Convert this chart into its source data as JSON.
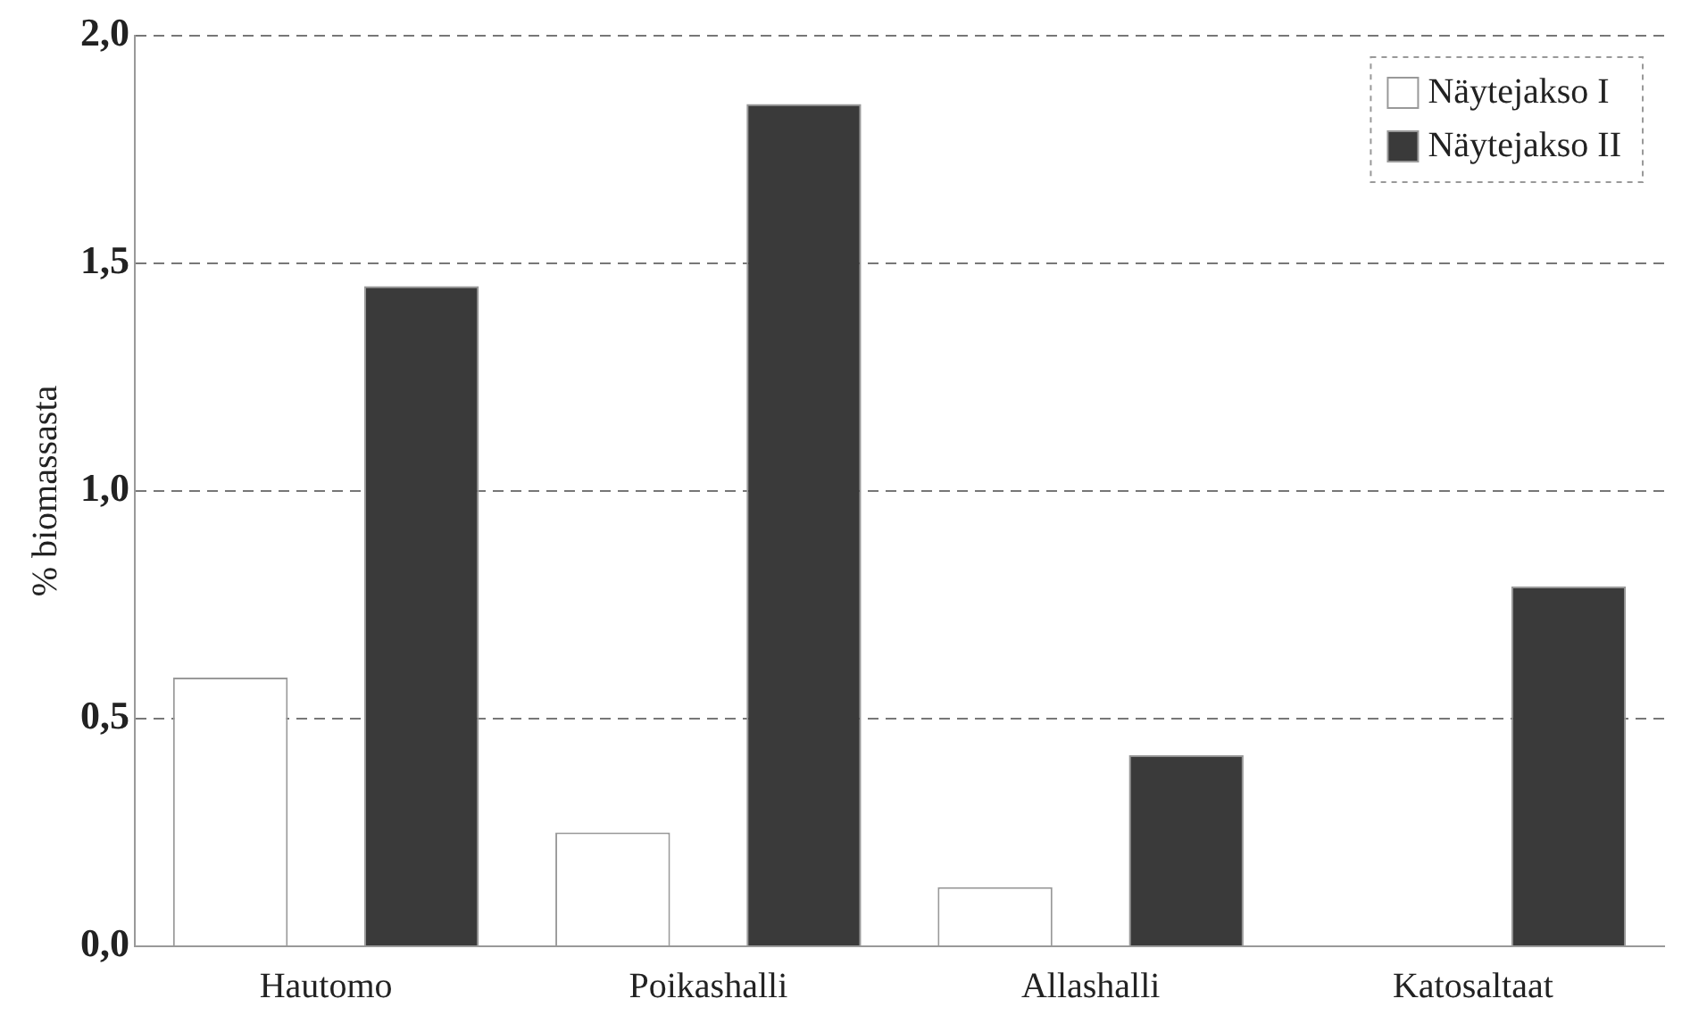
{
  "chart_data": {
    "type": "bar",
    "ylabel": "% biomassasta",
    "categories": [
      "Hautomo",
      "Poikashalli",
      "Allashalli",
      "Katosaltaat"
    ],
    "series": [
      {
        "name": "Näytejakso I",
        "color": "#ffffff",
        "values": [
          0.59,
          0.25,
          0.13,
          0
        ]
      },
      {
        "name": "Näytejakso II",
        "color": "#3a3a3a",
        "values": [
          1.45,
          1.85,
          0.42,
          0.79
        ]
      }
    ],
    "ylim": [
      0,
      2
    ],
    "yticks": [
      {
        "value": 0,
        "label": "0,0"
      },
      {
        "value": 0.5,
        "label": "0,5"
      },
      {
        "value": 1,
        "label": "1,0"
      },
      {
        "value": 1.5,
        "label": "1,5"
      },
      {
        "value": 2,
        "label": "2,0"
      }
    ],
    "grid": "y",
    "legend": "top right"
  }
}
